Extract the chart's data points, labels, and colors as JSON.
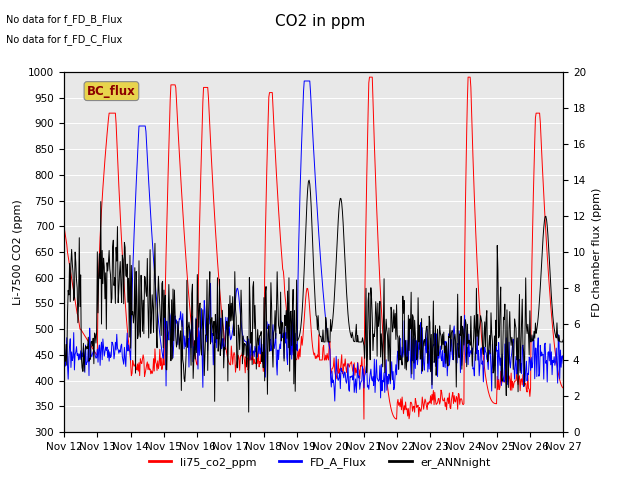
{
  "title": "CO2 in ppm",
  "ylabel_left": "Li-7500 CO2 (ppm)",
  "ylabel_right": "FD chamber flux (ppm)",
  "ylim_left": [
    300,
    1000
  ],
  "ylim_right": [
    0,
    20
  ],
  "yticks_left": [
    300,
    350,
    400,
    450,
    500,
    550,
    600,
    650,
    700,
    750,
    800,
    850,
    900,
    950,
    1000
  ],
  "yticks_right": [
    0,
    2,
    4,
    6,
    8,
    10,
    12,
    14,
    16,
    18,
    20
  ],
  "xtick_labels": [
    "Nov 12",
    "Nov 13",
    "Nov 14",
    "Nov 15",
    "Nov 16",
    "Nov 17",
    "Nov 18",
    "Nov 19",
    "Nov 20",
    "Nov 21",
    "Nov 22",
    "Nov 23",
    "Nov 24",
    "Nov 25",
    "Nov 26",
    "Nov 27"
  ],
  "text_no_data_1": "No data for f_FD_B_Flux",
  "text_no_data_2": "No data for f_FD_C_Flux",
  "bc_flux_label": "BC_flux",
  "legend_entries": [
    "li75_co2_ppm",
    "FD_A_Flux",
    "er_ANNnight"
  ],
  "legend_colors": [
    "red",
    "blue",
    "black"
  ],
  "line_color_red": "#ff0000",
  "line_color_blue": "#0000ff",
  "line_color_black": "#000000",
  "bg_color": "#e8e8e8",
  "title_fontsize": 11,
  "label_fontsize": 8,
  "tick_fontsize": 7.5
}
